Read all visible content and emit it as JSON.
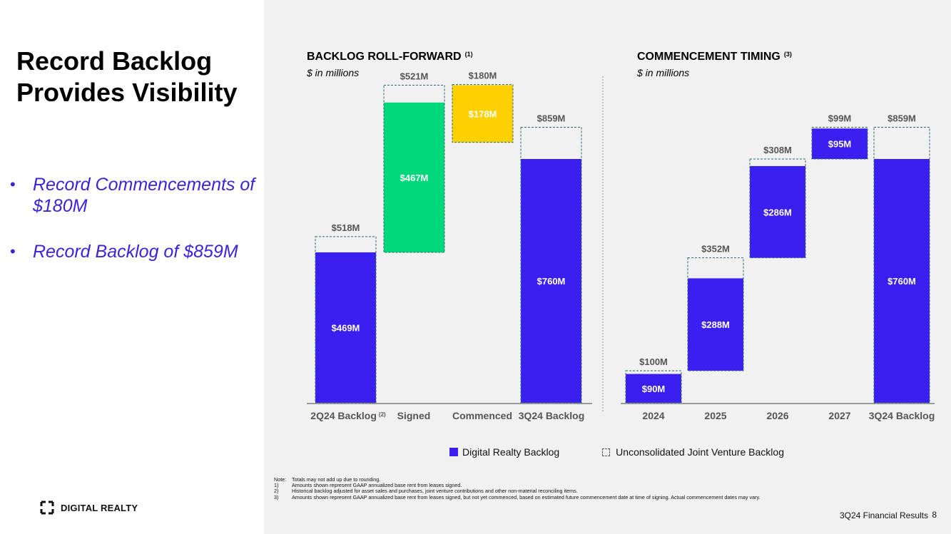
{
  "page": {
    "title": "Record Backlog Provides Visibility",
    "bullets": [
      "Record Commencements of $180M",
      "Record Backlog of $859M"
    ],
    "logo_text": "DIGITAL REALTY",
    "footer": "3Q24 Financial Results",
    "page_number": "8"
  },
  "legend": {
    "solid_label": "Digital Realty Backlog",
    "dashed_label": "Unconsolidated Joint Venture Backlog"
  },
  "notes": [
    {
      "num": "Note:",
      "text": "Totals may not add up due to rounding."
    },
    {
      "num": "1)",
      "text": "Amounts shown represent GAAP annualized base rent from leases signed."
    },
    {
      "num": "2)",
      "text": "Historical backlog adjusted for asset sales and purchases, joint venture contributions and other non-material reconciling items."
    },
    {
      "num": "3)",
      "text": "Amounts shown represent GAAP annualized base rent from leases signed, but not yet commenced, based on estimated future commencement date at time of signing. Actual commencement dates may vary."
    }
  ],
  "colors": {
    "digital_realty": "#3b1ef0",
    "signed": "#00d77a",
    "commenced": "#ffd000",
    "jv_outline": "#2c6b6b",
    "text_gray": "#555555"
  },
  "chart_data": [
    {
      "type": "bar",
      "subtype": "waterfall",
      "title": "BACKLOG ROLL-FORWARD",
      "title_footnote": "(1)",
      "subtitle": "$ in millions",
      "categories": [
        "2Q24 Backlog",
        "Signed",
        "Commenced",
        "3Q24 Backlog"
      ],
      "category_footnotes": [
        "(2)",
        "",
        "",
        ""
      ],
      "bars": [
        {
          "kind": "total",
          "base": 0,
          "consolidated": 469,
          "total": 518,
          "label_inner": "$469M",
          "label_top": "$518M"
        },
        {
          "kind": "increase",
          "base": 469,
          "consolidated": 467,
          "total": 521,
          "label_inner": "$467M",
          "label_top": "$521M"
        },
        {
          "kind": "decrease",
          "base": 812,
          "consolidated": 178,
          "total": 180,
          "label_inner": "$178M",
          "label_top": "$180M"
        },
        {
          "kind": "total",
          "base": 0,
          "consolidated": 760,
          "total": 859,
          "label_inner": "$760M",
          "label_top": "$859M"
        }
      ],
      "ylim": [
        0,
        1000
      ]
    },
    {
      "type": "bar",
      "subtype": "waterfall",
      "title": "COMMENCEMENT TIMING",
      "title_footnote": "(3)",
      "subtitle": "$ in millions",
      "categories": [
        "2024",
        "2025",
        "2026",
        "2027",
        "3Q24 Backlog"
      ],
      "bars": [
        {
          "kind": "step",
          "base": 0,
          "consolidated": 90,
          "total": 100,
          "label_inner": "$90M",
          "label_top": "$100M"
        },
        {
          "kind": "step",
          "base": 100,
          "consolidated": 288,
          "total": 352,
          "label_inner": "$288M",
          "label_top": "$352M"
        },
        {
          "kind": "step",
          "base": 452,
          "consolidated": 286,
          "total": 308,
          "label_inner": "$286M",
          "label_top": "$308M"
        },
        {
          "kind": "step",
          "base": 760,
          "consolidated": 95,
          "total": 99,
          "label_inner": "$95M",
          "label_top": "$99M"
        },
        {
          "kind": "total",
          "base": 0,
          "consolidated": 760,
          "total": 859,
          "label_inner": "$760M",
          "label_top": "$859M"
        }
      ],
      "ylim": [
        0,
        1000
      ]
    }
  ]
}
